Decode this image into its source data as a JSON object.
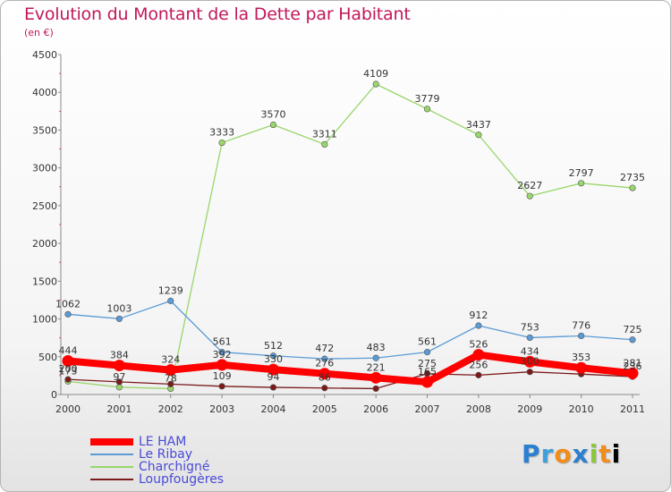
{
  "chart_data": {
    "type": "line",
    "title": "Evolution du Montant de la Dette par Habitant",
    "subtitle": "(en €)",
    "x": [
      "2000",
      "2001",
      "2002",
      "2003",
      "2004",
      "2005",
      "2006",
      "2007",
      "2008",
      "2009",
      "2010",
      "2011"
    ],
    "ylim": [
      0,
      4500
    ],
    "yticks": [
      0,
      500,
      1000,
      1500,
      2000,
      2500,
      3000,
      3500,
      4000,
      4500
    ],
    "grid": false,
    "legend_position": "bottom-left",
    "series": [
      {
        "name": "Charchigné",
        "color": "#99d66b",
        "values": [
          173,
          97,
          78,
          3333,
          3570,
          3311,
          4109,
          3779,
          3437,
          2627,
          2797,
          2735
        ]
      },
      {
        "name": "Le Ribay",
        "color": "#5b9bd5",
        "values": [
          1062,
          1003,
          1239,
          561,
          512,
          472,
          483,
          561,
          912,
          753,
          776,
          725
        ]
      },
      {
        "name": "Loupfougères",
        "color": "#7a1a1a",
        "values": [
          200,
          167,
          138,
          109,
          94,
          86,
          78,
          275,
          256,
          300,
          270,
          236
        ]
      },
      {
        "name": "LE HAM",
        "color": "#ff0000",
        "values": [
          444,
          384,
          324,
          392,
          330,
          276,
          221,
          165,
          526,
          434,
          353,
          281
        ]
      }
    ],
    "labels": {
      "Charchigné": [
        "173",
        "97",
        "78",
        "3333",
        "3570",
        "3311",
        "4109",
        "3779",
        "3437",
        "2627",
        "2797",
        "2735"
      ],
      "Le Ribay": [
        "1062",
        "1003",
        "1239",
        "561",
        "512",
        "472",
        "483",
        "561",
        "912",
        "753",
        "776",
        "725"
      ],
      "Loupfougères": [
        "200",
        "",
        "",
        "109",
        "94",
        "86",
        "",
        "275",
        "256",
        "300",
        "",
        "236"
      ],
      "LE HAM": [
        "444",
        "384",
        "324",
        "392",
        "330",
        "276",
        "221",
        "165",
        "526",
        "434",
        "353",
        "281"
      ]
    }
  },
  "legend": [
    {
      "name": "LE HAM",
      "color": "#ff0000"
    },
    {
      "name": "Le Ribay",
      "color": "#5b9bd5"
    },
    {
      "name": "Charchigné",
      "color": "#99d66b"
    },
    {
      "name": "Loupfougères",
      "color": "#7a1a1a"
    }
  ],
  "logo": {
    "letters": [
      "P",
      "r",
      "o",
      "x",
      "i",
      "t",
      "i"
    ]
  }
}
